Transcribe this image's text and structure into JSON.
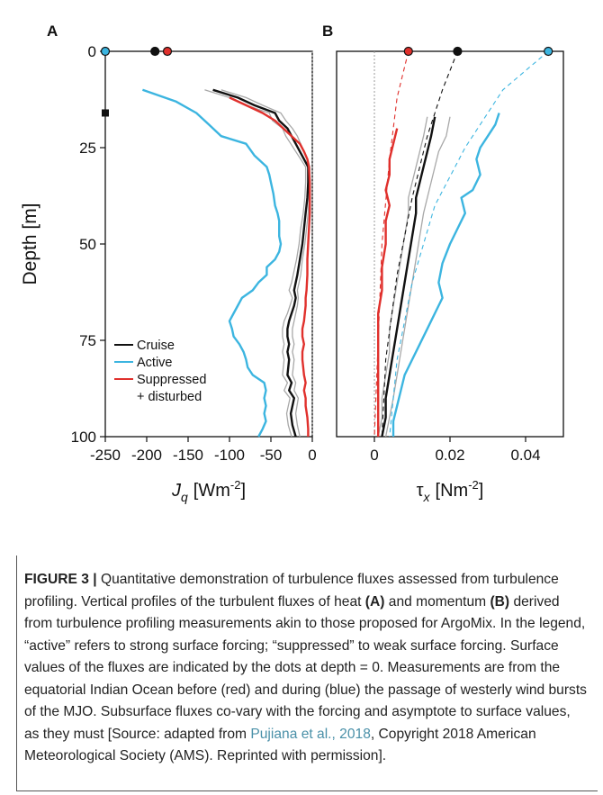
{
  "chart_data": [
    {
      "panel_label": "A",
      "type": "line",
      "xlabel_main": "J",
      "xlabel_sub": "q",
      "xlabel_unit": "[Wm",
      "xlabel_exp": "-2",
      "xlabel_close": "]",
      "ylabel": "Depth [m]",
      "xlim": [
        -250,
        0
      ],
      "ylim": [
        0,
        100
      ],
      "y_inverted": true,
      "x_ticks": [
        "-250",
        "-200",
        "-150",
        "-100",
        "-50",
        "0"
      ],
      "x_tick_values": [
        -250,
        -200,
        -150,
        -100,
        -50,
        0
      ],
      "y_ticks": [
        "0",
        "25",
        "50",
        "75",
        "100"
      ],
      "y_tick_values": [
        0,
        25,
        50,
        75,
        100
      ],
      "legend": {
        "placement": "lower-left",
        "entries": [
          {
            "label": "Cruise",
            "color": "#111111"
          },
          {
            "label": "Active",
            "color": "#3cb5e0"
          },
          {
            "label": "Suppressed",
            "color": "#e0302c"
          },
          {
            "label": "+ disturbed",
            "color": ""
          }
        ]
      },
      "surface_dots": [
        {
          "x": -250,
          "y": 0,
          "color": "#3cb5e0"
        },
        {
          "x": -190,
          "y": 0,
          "color": "#111111"
        },
        {
          "x": -175,
          "y": 0,
          "color": "#e0302c"
        }
      ],
      "marker": {
        "x": -250,
        "y": 16,
        "color": "#111111"
      },
      "series": [
        {
          "name": "Active",
          "color": "#3cb5e0",
          "x": [
            -205,
            -165,
            -140,
            -125,
            -110,
            -80,
            -70,
            -60,
            -55,
            -52,
            -50,
            -47,
            -45,
            -42,
            -40,
            -40,
            -40,
            -38,
            -40,
            -45,
            -55,
            -55,
            -65,
            -72,
            -85,
            -90,
            -95,
            -100,
            -97,
            -95,
            -88,
            -83,
            -80,
            -78,
            -72,
            -58,
            -56,
            -58,
            -56,
            -58,
            -56,
            -60,
            -65
          ],
          "y": [
            10,
            13,
            16,
            19,
            22,
            24,
            27,
            29,
            30,
            32,
            34,
            37,
            40,
            42,
            44,
            46,
            48,
            50,
            52,
            54,
            56,
            58,
            60,
            62,
            64,
            66,
            68,
            70,
            72,
            74,
            76,
            78,
            80,
            82,
            84,
            86,
            88,
            90,
            92,
            94,
            96,
            98,
            100
          ]
        },
        {
          "name": "Cruise",
          "color": "#111111",
          "x": [
            -120,
            -90,
            -70,
            -45,
            -40,
            -30,
            -25,
            -20,
            -15,
            -10,
            -5,
            -5,
            -6,
            -8,
            -10,
            -12,
            -15,
            -18,
            -20,
            -22,
            -20,
            -22,
            -25,
            -28,
            -30,
            -30,
            -28,
            -30,
            -28,
            -30,
            -25,
            -28,
            -22,
            -26,
            -24,
            -20
          ],
          "y": [
            10,
            12,
            14,
            16,
            18,
            20,
            22,
            24,
            26,
            28,
            30,
            34,
            38,
            42,
            46,
            50,
            54,
            58,
            60,
            62,
            64,
            66,
            68,
            70,
            72,
            74,
            76,
            78,
            80,
            84,
            86,
            88,
            90,
            94,
            97,
            100
          ]
        },
        {
          "name": "Suppressed + disturbed",
          "color": "#e0302c",
          "x": [
            -100,
            -80,
            -60,
            -45,
            -35,
            -25,
            -15,
            -10,
            -6,
            -4,
            -3,
            -3,
            -3,
            -4,
            -5,
            -6,
            -6,
            -7,
            -8,
            -8,
            -9,
            -10,
            -12,
            -12,
            -10,
            -12,
            -12,
            -10,
            -8,
            -10,
            -8,
            -8,
            -6,
            -5,
            -5
          ],
          "y": [
            12,
            14,
            16,
            18,
            20,
            22,
            24,
            26,
            28,
            30,
            34,
            38,
            42,
            46,
            50,
            54,
            58,
            62,
            64,
            66,
            68,
            70,
            72,
            74,
            76,
            78,
            80,
            84,
            86,
            88,
            90,
            92,
            95,
            98,
            100
          ]
        }
      ],
      "spread_series": [
        {
          "color": "#a8a8a8",
          "x": [
            -110,
            -80,
            -60,
            -38,
            -32,
            -24,
            -18,
            -14,
            -10,
            -6,
            -3,
            -3,
            -4,
            -5,
            -7,
            -9,
            -12,
            -14,
            -16,
            -18,
            -17,
            -18,
            -20,
            -22,
            -24,
            -24,
            -22,
            -24,
            -22,
            -24,
            -20,
            -22,
            -17,
            -20,
            -18,
            -15
          ],
          "y": [
            10,
            12,
            14,
            16,
            18,
            20,
            22,
            24,
            26,
            28,
            30,
            34,
            38,
            42,
            46,
            50,
            54,
            58,
            60,
            62,
            64,
            66,
            68,
            70,
            72,
            74,
            76,
            78,
            80,
            84,
            86,
            88,
            90,
            94,
            97,
            100
          ]
        },
        {
          "color": "#a8a8a8",
          "x": [
            -130,
            -100,
            -80,
            -52,
            -48,
            -36,
            -32,
            -26,
            -20,
            -14,
            -8,
            -8,
            -9,
            -11,
            -14,
            -16,
            -19,
            -23,
            -25,
            -28,
            -24,
            -27,
            -30,
            -34,
            -36,
            -36,
            -34,
            -36,
            -34,
            -36,
            -30,
            -34,
            -27,
            -31,
            -29,
            -25
          ],
          "y": [
            10,
            12,
            14,
            16,
            18,
            20,
            22,
            24,
            26,
            28,
            30,
            34,
            38,
            42,
            46,
            50,
            54,
            58,
            60,
            62,
            64,
            66,
            68,
            70,
            72,
            74,
            76,
            78,
            80,
            84,
            86,
            88,
            90,
            94,
            97,
            100
          ]
        }
      ]
    },
    {
      "panel_label": "B",
      "type": "line",
      "xlabel_main": "τ",
      "xlabel_sub": "x",
      "xlabel_unit": "[Nm",
      "xlabel_exp": "-2",
      "xlabel_close": "]",
      "ylabel": "",
      "xlim": [
        -0.01,
        0.05
      ],
      "ylim": [
        0,
        100
      ],
      "y_inverted": true,
      "x_ticks": [
        "0",
        "0.02",
        "0.04"
      ],
      "x_tick_values": [
        0,
        0.02,
        0.04
      ],
      "surface_dots": [
        {
          "x": 0.009,
          "y": 0,
          "color": "#e0302c"
        },
        {
          "x": 0.022,
          "y": 0,
          "color": "#111111"
        },
        {
          "x": 0.046,
          "y": 0,
          "color": "#3cb5e0"
        }
      ],
      "series": [
        {
          "name": "Active",
          "color": "#3cb5e0",
          "x": [
            0.033,
            0.032,
            0.03,
            0.028,
            0.027,
            0.028,
            0.026,
            0.023,
            0.024,
            0.022,
            0.02,
            0.018,
            0.017,
            0.018,
            0.016,
            0.014,
            0.012,
            0.01,
            0.008,
            0.007,
            0.006,
            0.005,
            0.005
          ],
          "y": [
            16,
            19,
            22,
            25,
            28,
            32,
            36,
            38,
            42,
            46,
            50,
            55,
            60,
            64,
            68,
            72,
            76,
            80,
            84,
            88,
            92,
            96,
            100
          ],
          "fit_x": [
            0.046,
            0.034,
            0.024,
            0.016,
            0.01,
            0.006,
            0.004
          ],
          "fit_y": [
            0,
            10,
            25,
            40,
            60,
            80,
            100
          ]
        },
        {
          "name": "Cruise",
          "color": "#111111",
          "x": [
            0.016,
            0.015,
            0.014,
            0.013,
            0.012,
            0.011,
            0.011,
            0.01,
            0.009,
            0.008,
            0.007,
            0.006,
            0.005,
            0.004,
            0.003,
            0.003,
            0.002
          ],
          "y": [
            17,
            22,
            26,
            30,
            34,
            38,
            42,
            48,
            54,
            60,
            66,
            72,
            78,
            84,
            90,
            95,
            100
          ],
          "fit_x": [
            0.022,
            0.018,
            0.014,
            0.01,
            0.006,
            0.003,
            0.002
          ],
          "fit_y": [
            0,
            10,
            22,
            38,
            58,
            80,
            100
          ]
        },
        {
          "name": "Suppressed + disturbed",
          "color": "#e0302c",
          "x": [
            0.006,
            0.005,
            0.004,
            0.004,
            0.003,
            0.004,
            0.003,
            0.003,
            0.002,
            0.002,
            0.001,
            0.001,
            0.001,
            0.001,
            0.001,
            0.001
          ],
          "y": [
            20,
            24,
            28,
            32,
            36,
            40,
            44,
            50,
            56,
            62,
            68,
            74,
            80,
            86,
            92,
            100
          ],
          "fit_x": [
            0.009,
            0.006,
            0.004,
            0.002,
            0.001,
            0.0
          ],
          "fit_y": [
            0,
            12,
            28,
            50,
            75,
            100
          ]
        }
      ],
      "spread_series": [
        {
          "color": "#a8a8a8",
          "x": [
            0.02,
            0.019,
            0.017,
            0.016,
            0.015,
            0.014,
            0.013,
            0.012,
            0.011,
            0.01,
            0.009,
            0.008,
            0.007,
            0.006,
            0.005,
            0.004,
            0.003
          ],
          "y": [
            17,
            22,
            26,
            30,
            34,
            38,
            42,
            48,
            54,
            60,
            66,
            72,
            78,
            84,
            90,
            95,
            100
          ]
        },
        {
          "color": "#a8a8a8",
          "x": [
            0.014,
            0.013,
            0.012,
            0.011,
            0.01,
            0.009,
            0.009,
            0.008,
            0.007,
            0.006,
            0.005,
            0.004,
            0.004,
            0.003,
            0.002,
            0.002,
            0.001
          ],
          "y": [
            17,
            22,
            26,
            30,
            34,
            38,
            42,
            48,
            54,
            60,
            66,
            72,
            78,
            84,
            90,
            95,
            100
          ]
        }
      ]
    }
  ],
  "caption": {
    "fig_label": "FIGURE 3 |",
    "t1": " Quantitative demonstration of turbulence fluxes assessed from turbulence profiling. Vertical profiles of the turbulent fluxes of heat ",
    "ref_a": "(A)",
    "t2": " and momentum ",
    "ref_b": "(B)",
    "t3": " derived from turbulence profiling measurements akin to those proposed for ArgoMix. In the legend, “active” refers to strong surface forcing; “suppressed” to weak surface forcing. Surface values of the fluxes are indicated by the dots at depth = 0. Measurements are from the equatorial Indian Ocean before (red) and during (blue) the passage of westerly wind bursts of the MJO. Subsurface fluxes co-vary with the forcing and asymptote to surface values, as they must [Source: adapted from ",
    "source_link": "Pujiana et al., 2018",
    "t4": ", Copyright 2018 American Meteorological Society (AMS). Reprinted with permission]."
  }
}
